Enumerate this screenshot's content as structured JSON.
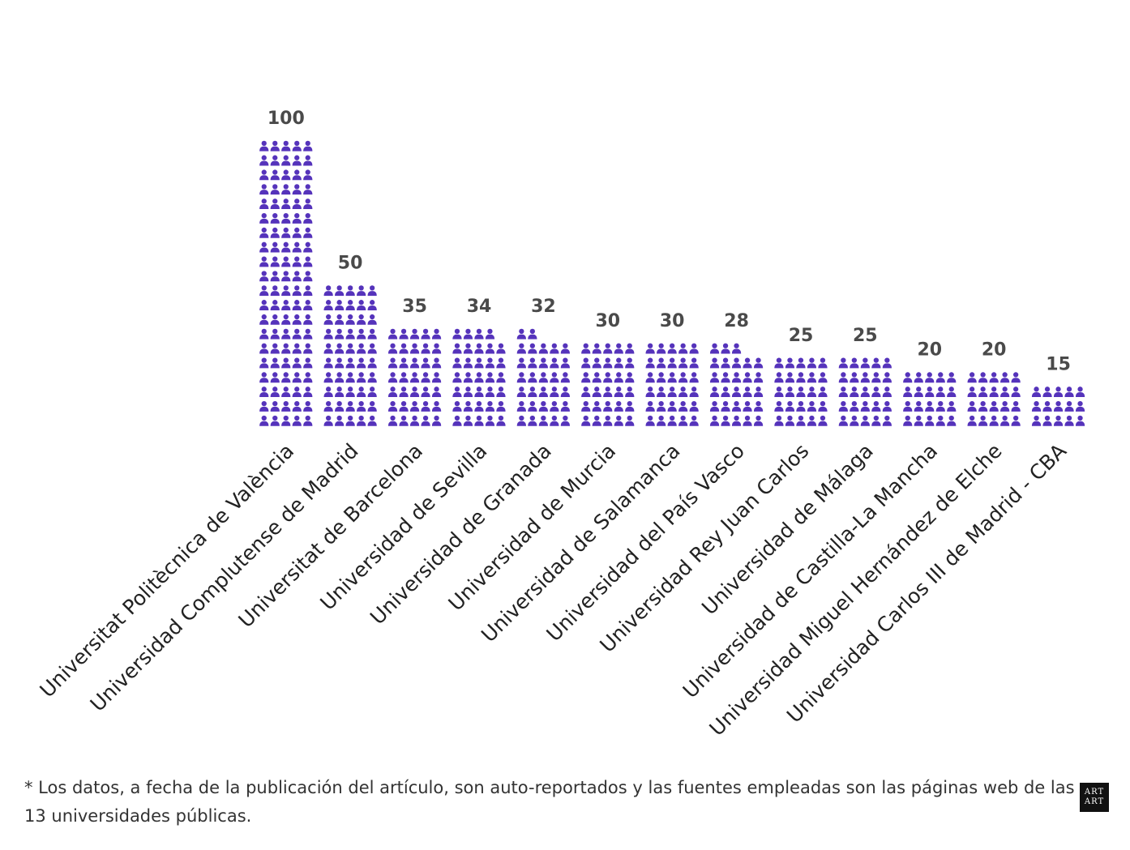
{
  "colors": {
    "icon": "#5533bb",
    "value_label": "#4a4a4a",
    "category_label": "#222222"
  },
  "chart_data": {
    "type": "bar",
    "style": "pictogram (person icons, 5 columns per bar)",
    "title": "",
    "xlabel": "",
    "ylabel": "",
    "ylim": [
      0,
      100
    ],
    "categories": [
      "Universitat Politècnica de València",
      "Universidad Complutense de Madrid",
      "Universitat de Barcelona",
      "Universidad de Sevilla",
      "Universidad de Granada",
      "Universidad de Murcia",
      "Universidad de Salamanca",
      "Universidad del País Vasco",
      "Universidad Rey Juan Carlos",
      "Universidad de Málaga",
      "Universidad de Castilla-La Mancha",
      "Universidad Miguel Hernández de Elche",
      "Universidad Carlos III de Madrid - CBA"
    ],
    "values": [
      100,
      50,
      35,
      34,
      32,
      30,
      30,
      28,
      25,
      25,
      20,
      20,
      15
    ],
    "value_labels": [
      "100",
      "50",
      "35",
      "34",
      "32",
      "30",
      "30",
      "28",
      "25",
      "25",
      "20",
      "20",
      "15"
    ]
  },
  "footnote": "* Los datos, a fecha de la publicación del artículo, son auto-reportados y las fuentes empleadas son las páginas web de las 13 universidades públicas.",
  "logo": {
    "line1": "ART",
    "line2": "ART"
  }
}
